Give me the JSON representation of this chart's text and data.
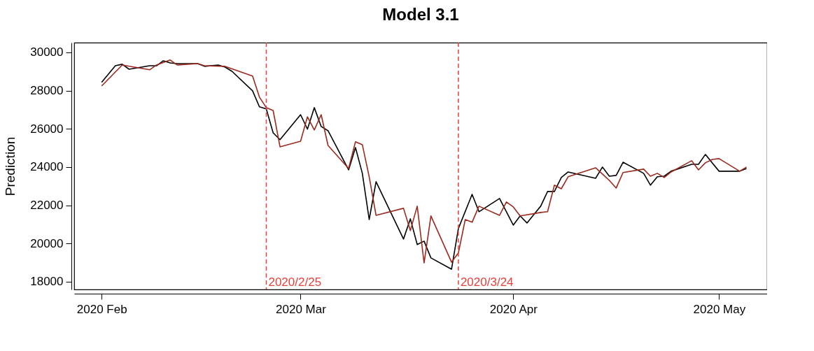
{
  "chart_data": {
    "type": "line",
    "title": "Model 3.1",
    "ylabel": "Prediction",
    "xlim": [
      "2020-01-28",
      "2020-05-08"
    ],
    "xticks": [
      {
        "value": "2020-02-01",
        "label": "2020 Feb"
      },
      {
        "value": "2020-03-01",
        "label": "2020 Mar"
      },
      {
        "value": "2020-04-01",
        "label": "2020 Apr"
      },
      {
        "value": "2020-05-01",
        "label": "2020 May"
      }
    ],
    "ylim": [
      17590,
      30510
    ],
    "yticks": [
      18000,
      20000,
      22000,
      24000,
      26000,
      28000,
      30000
    ],
    "grid": false,
    "legend": false,
    "line_style": "solid",
    "marker": "none",
    "ref_lines": [
      {
        "axis": "x",
        "value": "2020-02-25",
        "label": "2020/2/25",
        "color": "#e8413a",
        "line_style": "dashed"
      },
      {
        "axis": "x",
        "value": "2020-03-24",
        "label": "2020/3/24",
        "color": "#e8413a",
        "line_style": "dashed"
      }
    ],
    "series": [
      {
        "color": "#000000",
        "x": [
          "2020-02-01",
          "2020-02-03",
          "2020-02-04",
          "2020-02-05",
          "2020-02-08",
          "2020-02-09",
          "2020-02-10",
          "2020-02-11",
          "2020-02-12",
          "2020-02-15",
          "2020-02-16",
          "2020-02-18",
          "2020-02-19",
          "2020-02-20",
          "2020-02-23",
          "2020-02-24",
          "2020-02-25",
          "2020-02-26",
          "2020-02-27",
          "2020-03-01",
          "2020-03-02",
          "2020-03-03",
          "2020-03-04",
          "2020-03-05",
          "2020-03-08",
          "2020-03-09",
          "2020-03-10",
          "2020-03-11",
          "2020-03-12",
          "2020-03-16",
          "2020-03-17",
          "2020-03-18",
          "2020-03-19",
          "2020-03-20",
          "2020-03-23",
          "2020-03-24",
          "2020-03-26",
          "2020-03-27",
          "2020-03-30",
          "2020-04-01",
          "2020-04-02",
          "2020-04-03",
          "2020-04-05",
          "2020-04-06",
          "2020-04-07",
          "2020-04-08",
          "2020-04-09",
          "2020-04-13",
          "2020-04-14",
          "2020-04-15",
          "2020-04-16",
          "2020-04-17",
          "2020-04-20",
          "2020-04-21",
          "2020-04-22",
          "2020-04-23",
          "2020-04-24",
          "2020-04-27",
          "2020-04-28",
          "2020-04-29",
          "2020-05-01",
          "2020-05-04",
          "2020-05-05"
        ],
        "values": [
          28430,
          29300,
          29380,
          29120,
          29300,
          29300,
          29560,
          29450,
          29410,
          29410,
          29270,
          29340,
          29230,
          29010,
          27990,
          27150,
          27040,
          25790,
          25430,
          26740,
          25980,
          27110,
          26120,
          25900,
          23850,
          25020,
          23670,
          21250,
          23230,
          20230,
          21290,
          19940,
          20120,
          19240,
          18650,
          20780,
          22570,
          21660,
          22350,
          20960,
          21440,
          21070,
          21950,
          22720,
          22720,
          23450,
          23740,
          23410,
          24000,
          23520,
          23560,
          24250,
          23670,
          23050,
          23490,
          23520,
          23780,
          24140,
          24140,
          24660,
          23780,
          23780,
          23920
        ]
      },
      {
        "color": "#9b2a1e",
        "x": [
          "2020-02-01",
          "2020-02-04",
          "2020-02-08",
          "2020-02-09",
          "2020-02-11",
          "2020-02-12",
          "2020-02-15",
          "2020-02-16",
          "2020-02-19",
          "2020-02-23",
          "2020-02-24",
          "2020-02-25",
          "2020-02-26",
          "2020-02-27",
          "2020-03-01",
          "2020-03-02",
          "2020-03-03",
          "2020-03-04",
          "2020-03-05",
          "2020-03-08",
          "2020-03-09",
          "2020-03-10",
          "2020-03-11",
          "2020-03-12",
          "2020-03-16",
          "2020-03-17",
          "2020-03-18",
          "2020-03-19",
          "2020-03-20",
          "2020-03-23",
          "2020-03-24",
          "2020-03-25",
          "2020-03-26",
          "2020-03-27",
          "2020-03-30",
          "2020-03-31",
          "2020-04-01",
          "2020-04-02",
          "2020-04-05",
          "2020-04-06",
          "2020-04-07",
          "2020-04-08",
          "2020-04-09",
          "2020-04-13",
          "2020-04-15",
          "2020-04-16",
          "2020-04-17",
          "2020-04-20",
          "2020-04-21",
          "2020-04-22",
          "2020-04-23",
          "2020-04-24",
          "2020-04-27",
          "2020-04-28",
          "2020-04-29",
          "2020-04-30",
          "2020-05-01",
          "2020-05-04",
          "2020-05-05"
        ],
        "values": [
          28240,
          29340,
          29090,
          29340,
          29600,
          29340,
          29410,
          29300,
          29270,
          28760,
          27660,
          27110,
          26960,
          25060,
          25350,
          26630,
          25940,
          26740,
          25130,
          23920,
          25320,
          25170,
          23490,
          21470,
          21840,
          20670,
          21950,
          18980,
          21440,
          19020,
          19500,
          21250,
          21110,
          21950,
          21470,
          22170,
          21910,
          21440,
          21620,
          21660,
          23050,
          22860,
          23490,
          23960,
          23300,
          22900,
          23710,
          23890,
          23520,
          23670,
          23450,
          23740,
          24330,
          23850,
          24220,
          24400,
          24440,
          23780,
          24000
        ]
      }
    ]
  }
}
